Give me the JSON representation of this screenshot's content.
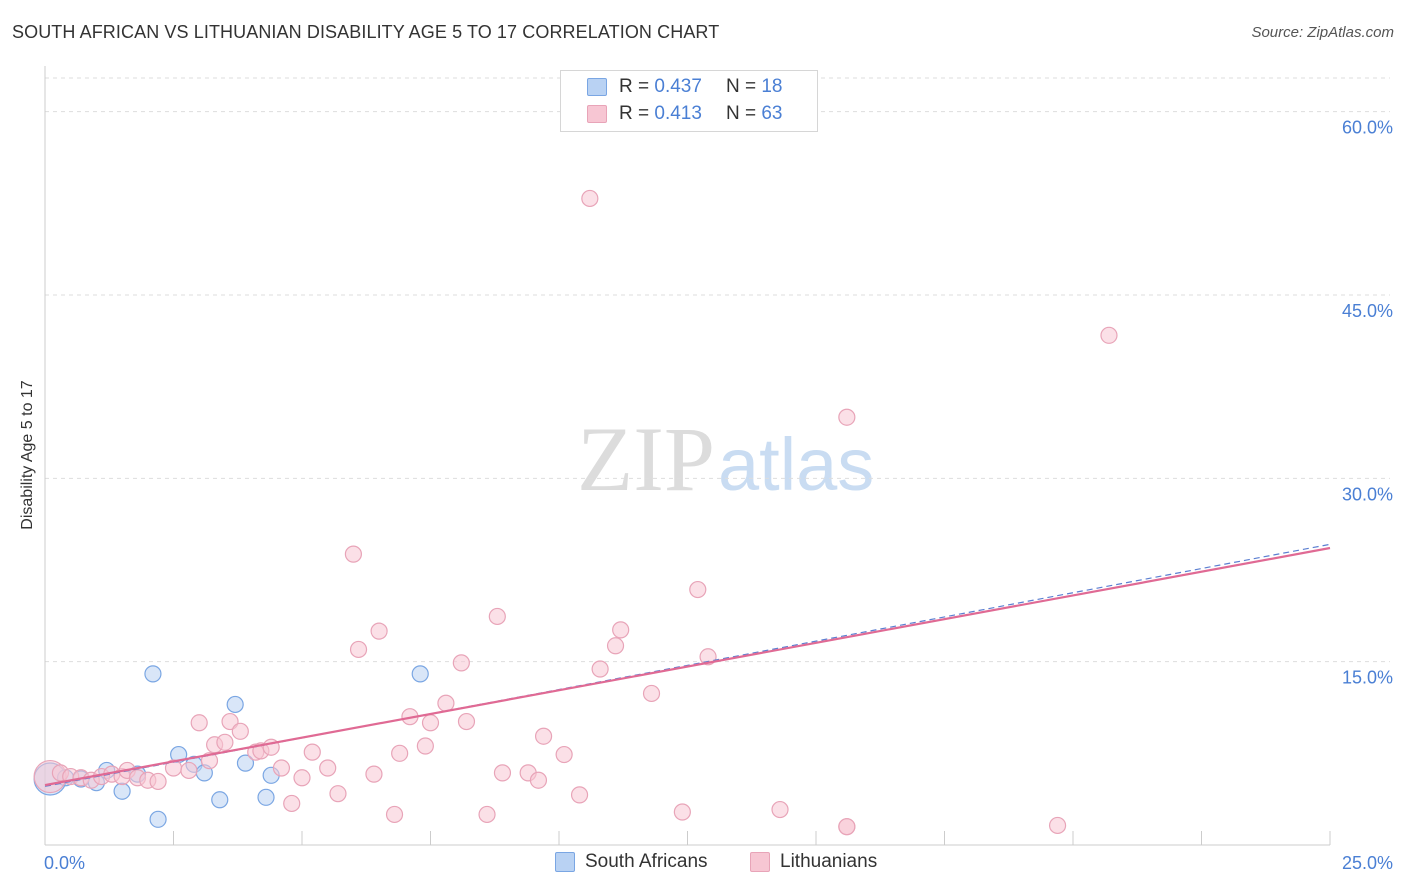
{
  "title": "SOUTH AFRICAN VS LITHUANIAN DISABILITY AGE 5 TO 17 CORRELATION CHART",
  "source": "Source: ZipAtlas.com",
  "watermark": {
    "zip": "ZIP",
    "atlas": "atlas"
  },
  "colors": {
    "blue_fill": "#b9d2f3",
    "blue_stroke": "#7aa6e3",
    "blue_line": "#5b7fd1",
    "pink_fill": "#f7c6d3",
    "pink_stroke": "#e8a4b8",
    "pink_line": "#e06a94",
    "tick_label": "#4a7fd4",
    "grid": "#dddddd"
  },
  "legend_top": {
    "rows": [
      {
        "r_label": "R =",
        "r_value": "0.437",
        "n_label": "N =",
        "n_value": "18"
      },
      {
        "r_label": "R =",
        "r_value": "0.413",
        "n_label": "N =",
        "n_value": "63"
      }
    ]
  },
  "legend_bottom": {
    "items": [
      "South Africans",
      "Lithuanians"
    ]
  },
  "chart_data": {
    "type": "scatter",
    "title": "SOUTH AFRICAN VS LITHUANIAN DISABILITY AGE 5 TO 17 CORRELATION CHART",
    "xlabel": "",
    "ylabel": "Disability Age 5 to 17",
    "xlim": [
      0,
      25
    ],
    "ylim": [
      0,
      63
    ],
    "x_tick_labels": [
      {
        "value": 0,
        "label": "0.0%"
      },
      {
        "value": 25,
        "label": "25.0%"
      }
    ],
    "y_tick_labels": [
      {
        "value": 15,
        "label": "15.0%"
      },
      {
        "value": 30,
        "label": "30.0%"
      },
      {
        "value": 45,
        "label": "45.0%"
      },
      {
        "value": 60,
        "label": "60.0%"
      }
    ],
    "x_minor_ticks": [
      2.5,
      5,
      7.5,
      10,
      12.5,
      15,
      17.5,
      20,
      22.5,
      25
    ],
    "y_gridlines": [
      15,
      30,
      45,
      60
    ],
    "series": [
      {
        "name": "South Africans",
        "color": "blue",
        "R": 0.437,
        "N": 18,
        "trend": {
          "x0": 0,
          "y0": 4.8,
          "x1": 25,
          "y1": 24.6
        },
        "points": [
          {
            "x": 0.1,
            "y": 5.4,
            "size": "large"
          },
          {
            "x": 0.4,
            "y": 5.5
          },
          {
            "x": 0.7,
            "y": 5.4
          },
          {
            "x": 1.0,
            "y": 5.1
          },
          {
            "x": 1.2,
            "y": 6.1
          },
          {
            "x": 1.5,
            "y": 4.4
          },
          {
            "x": 1.8,
            "y": 5.8
          },
          {
            "x": 2.1,
            "y": 14.0
          },
          {
            "x": 2.2,
            "y": 2.1
          },
          {
            "x": 2.6,
            "y": 7.4
          },
          {
            "x": 2.9,
            "y": 6.6
          },
          {
            "x": 3.1,
            "y": 5.9
          },
          {
            "x": 3.4,
            "y": 3.7
          },
          {
            "x": 3.7,
            "y": 11.5
          },
          {
            "x": 3.9,
            "y": 6.7
          },
          {
            "x": 4.3,
            "y": 3.9
          },
          {
            "x": 4.4,
            "y": 5.7
          },
          {
            "x": 7.3,
            "y": 14.0
          }
        ]
      },
      {
        "name": "Lithuanians",
        "color": "pink",
        "R": 0.413,
        "N": 63,
        "trend": {
          "x0": 0,
          "y0": 4.9,
          "x1": 25,
          "y1": 24.3
        },
        "points": [
          {
            "x": 0.1,
            "y": 5.6,
            "size": "large"
          },
          {
            "x": 0.3,
            "y": 5.9
          },
          {
            "x": 0.5,
            "y": 5.6
          },
          {
            "x": 0.7,
            "y": 5.5
          },
          {
            "x": 0.9,
            "y": 5.3
          },
          {
            "x": 1.1,
            "y": 5.6
          },
          {
            "x": 1.3,
            "y": 5.8
          },
          {
            "x": 1.5,
            "y": 5.6
          },
          {
            "x": 1.6,
            "y": 6.1
          },
          {
            "x": 1.8,
            "y": 5.5
          },
          {
            "x": 2.0,
            "y": 5.3
          },
          {
            "x": 2.2,
            "y": 5.2
          },
          {
            "x": 2.5,
            "y": 6.3
          },
          {
            "x": 2.8,
            "y": 6.1
          },
          {
            "x": 3.0,
            "y": 10.0
          },
          {
            "x": 3.2,
            "y": 6.9
          },
          {
            "x": 3.3,
            "y": 8.2
          },
          {
            "x": 3.5,
            "y": 8.4
          },
          {
            "x": 3.6,
            "y": 10.1
          },
          {
            "x": 3.8,
            "y": 9.3
          },
          {
            "x": 4.1,
            "y": 7.6
          },
          {
            "x": 4.2,
            "y": 7.7
          },
          {
            "x": 4.4,
            "y": 8.0
          },
          {
            "x": 4.6,
            "y": 6.3
          },
          {
            "x": 4.8,
            "y": 3.4
          },
          {
            "x": 5.0,
            "y": 5.5
          },
          {
            "x": 5.2,
            "y": 7.6
          },
          {
            "x": 5.5,
            "y": 6.3
          },
          {
            "x": 5.7,
            "y": 4.2
          },
          {
            "x": 6.0,
            "y": 23.8
          },
          {
            "x": 6.1,
            "y": 16.0
          },
          {
            "x": 6.4,
            "y": 5.8
          },
          {
            "x": 6.5,
            "y": 17.5
          },
          {
            "x": 6.8,
            "y": 2.5
          },
          {
            "x": 6.9,
            "y": 7.5
          },
          {
            "x": 7.1,
            "y": 10.5
          },
          {
            "x": 7.4,
            "y": 8.1
          },
          {
            "x": 7.5,
            "y": 10.0
          },
          {
            "x": 7.8,
            "y": 11.6
          },
          {
            "x": 8.1,
            "y": 14.9
          },
          {
            "x": 8.2,
            "y": 10.1
          },
          {
            "x": 8.6,
            "y": 2.5
          },
          {
            "x": 8.8,
            "y": 18.7
          },
          {
            "x": 8.9,
            "y": 5.9
          },
          {
            "x": 9.4,
            "y": 5.9
          },
          {
            "x": 9.6,
            "y": 5.3
          },
          {
            "x": 9.7,
            "y": 8.9
          },
          {
            "x": 10.1,
            "y": 7.4
          },
          {
            "x": 10.4,
            "y": 4.1
          },
          {
            "x": 10.6,
            "y": 52.9
          },
          {
            "x": 11.1,
            "y": 16.3
          },
          {
            "x": 11.2,
            "y": 17.6
          },
          {
            "x": 10.8,
            "y": 14.4
          },
          {
            "x": 11.8,
            "y": 12.4
          },
          {
            "x": 12.4,
            "y": 2.7
          },
          {
            "x": 12.7,
            "y": 20.9
          },
          {
            "x": 12.9,
            "y": 15.4
          },
          {
            "x": 14.3,
            "y": 2.9
          },
          {
            "x": 15.6,
            "y": 35.0
          },
          {
            "x": 15.6,
            "y": 1.5
          },
          {
            "x": 19.7,
            "y": 1.6
          },
          {
            "x": 20.7,
            "y": 41.7
          },
          {
            "x": 15.6,
            "y": 1.5
          }
        ]
      }
    ]
  }
}
